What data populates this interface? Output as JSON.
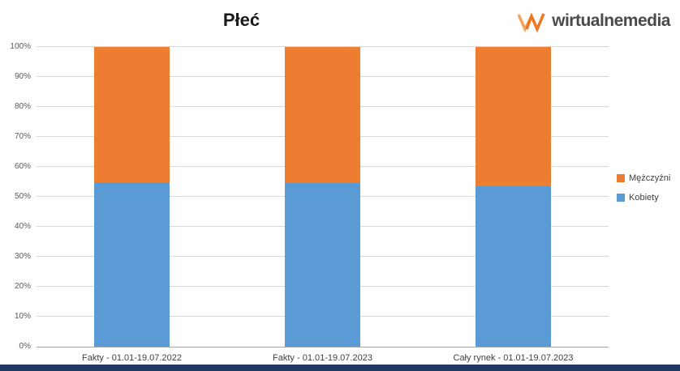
{
  "title": "Płeć",
  "logo": {
    "text": "wirtualnemedia",
    "mark_color": "#EE7623",
    "mark_color_light": "#F5A25D"
  },
  "footer_color": "#1F3864",
  "chart_data": {
    "type": "bar",
    "stacked": true,
    "title": "Płeć",
    "categories": [
      "Fakty - 01.01-19.07.2022",
      "Fakty - 01.01-19.07.2023",
      "Cały rynek - 01.01-19.07.2023"
    ],
    "series": [
      {
        "name": "Kobiety",
        "color": "#5B9BD5",
        "values": [
          55,
          54.5,
          53.5
        ]
      },
      {
        "name": "Mężczyźni",
        "color": "#ED7D31",
        "values": [
          45,
          45.5,
          46.5
        ]
      }
    ],
    "ylabel": "",
    "ylim": [
      0,
      100
    ],
    "yticks": [
      "0%",
      "10%",
      "20%",
      "30%",
      "40%",
      "50%",
      "60%",
      "70%",
      "80%",
      "90%",
      "100%"
    ],
    "grid": true,
    "legend_position": "right",
    "legend_order": [
      "Mężczyźni",
      "Kobiety"
    ]
  }
}
